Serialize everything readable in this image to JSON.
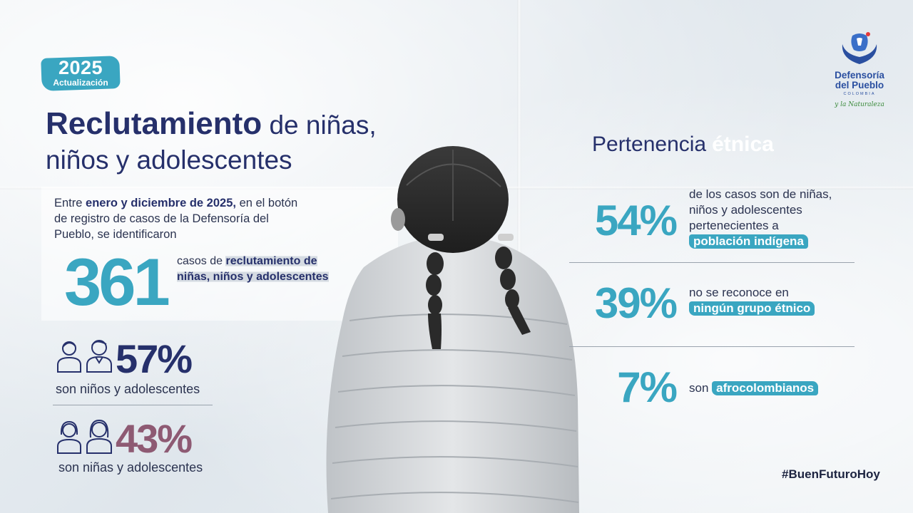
{
  "badge": {
    "year": "2025",
    "subtitle": "Actualización"
  },
  "title": {
    "bold": "Reclutamiento",
    "rest_line1": " de niñas,",
    "line2": "niños y adolescentes"
  },
  "intro": {
    "p1": "Entre ",
    "p1_bold": "enero y diciembre de 2025,",
    "p2": " en el botón de registro de casos de la Defensoría del Pueblo, se identificaron"
  },
  "total": {
    "number": "361",
    "text_pre": "casos de ",
    "text_bold": "reclutamiento de niñas, niños y adolescentes"
  },
  "gender": {
    "boys": {
      "percent": "57%",
      "label": "son niños y adolescentes",
      "color": "#26306b"
    },
    "girls": {
      "percent": "43%",
      "label": "son niñas y adolescentes",
      "color": "#8e5a73"
    }
  },
  "ethnic": {
    "title_pre": "Pertenencia",
    "title_highlight": "étnica",
    "items": [
      {
        "percent": "54%",
        "text": "de los casos son de niñas, niños y adolescentes pertenecientes a",
        "tag": "población indígena"
      },
      {
        "percent": "39%",
        "text": "no se reconoce en",
        "tag": "ningún grupo étnico"
      },
      {
        "percent": "7%",
        "text": "son",
        "tag": "afrocolombianos"
      }
    ]
  },
  "hashtag": "#BuenFuturoHoy",
  "logo": {
    "line1": "Defensoría",
    "line2": "del Pueblo",
    "line3": "COLOMBIA",
    "line4": "y la Naturaleza"
  },
  "colors": {
    "accent": "#3aa6c1",
    "navy": "#26306b",
    "mauve": "#8e5a73"
  }
}
